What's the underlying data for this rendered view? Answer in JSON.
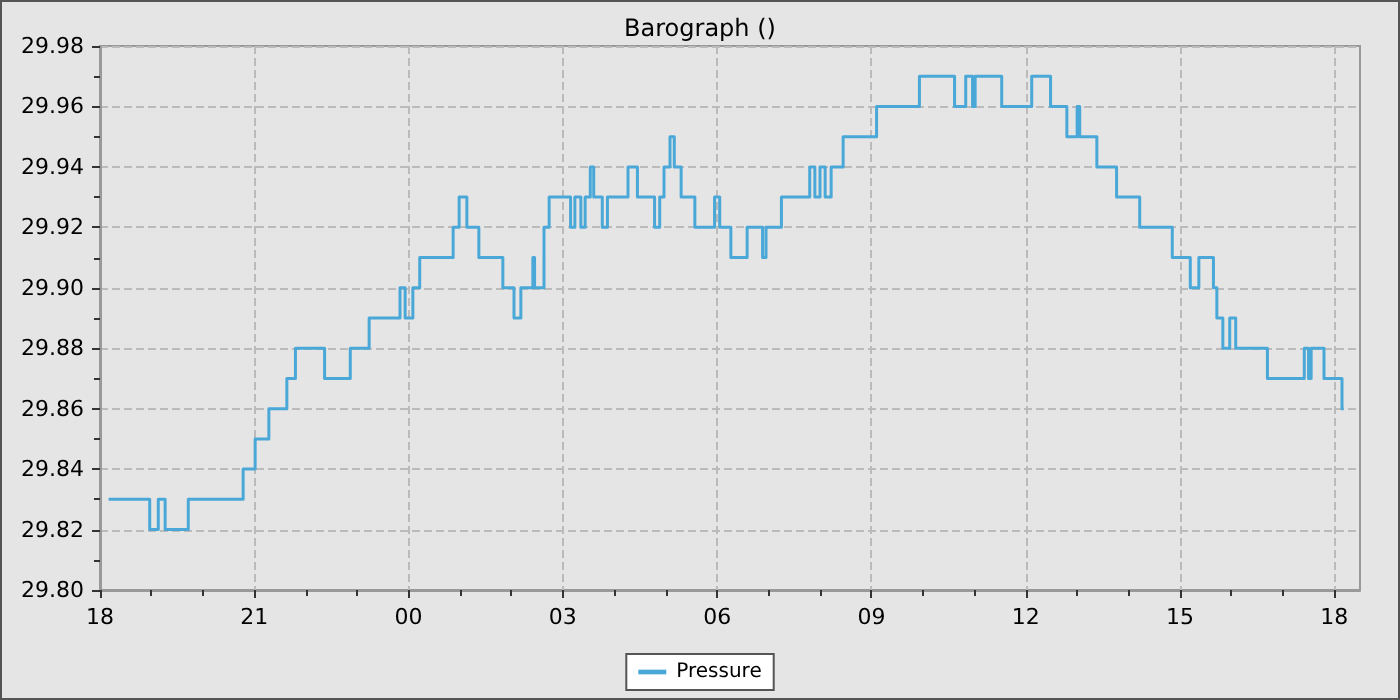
{
  "chart_data": {
    "type": "step",
    "title": "Barograph ()",
    "x": [
      "--01-01T18:10",
      "--01-01T18:58",
      "--01-01T19:08",
      "--01-01T19:16",
      "--01-01T19:43",
      "--01-01T20:47",
      "--01-01T21:01",
      "--01-01T21:17",
      "--01-01T21:38",
      "--01-01T21:48",
      "--01-01T22:22",
      "--01-01T22:52",
      "--01-01T23:14",
      "--01-01T23:50",
      "--01-01T23:56",
      "--01-02T00:05",
      "--01-02T00:13",
      "--01-02T00:52",
      "--01-02T00:59",
      "--01-02T01:08",
      "--01-02T01:22",
      "--01-02T01:50",
      "--01-02T02:03",
      "--01-02T02:11",
      "--01-02T02:25",
      "--01-02T02:27",
      "--01-02T02:38",
      "--01-02T02:44",
      "--01-02T03:09",
      "--01-02T03:14",
      "--01-02T03:21",
      "--01-02T03:26",
      "--01-02T03:32",
      "--01-02T03:36",
      "--01-02T03:46",
      "--01-02T03:52",
      "--01-02T04:16",
      "--01-02T04:27",
      "--01-02T04:47",
      "--01-02T04:53",
      "--01-02T04:58",
      "--01-02T05:05",
      "--01-02T05:10",
      "--01-02T05:18",
      "--01-02T05:34",
      "--01-02T05:57",
      "--01-02T06:03",
      "--01-02T06:16",
      "--01-02T06:35",
      "--01-02T06:53",
      "--01-02T06:57",
      "--01-02T07:15",
      "--01-02T07:48",
      "--01-02T07:54",
      "--01-02T08:00",
      "--01-02T08:06",
      "--01-02T08:13",
      "--01-02T08:27",
      "--01-02T09:06",
      "--01-02T09:56",
      "--01-02T10:37",
      "--01-02T10:50",
      "--01-02T10:58",
      "--01-02T11:01",
      "--01-02T11:32",
      "--01-02T12:07",
      "--01-02T12:29",
      "--01-02T12:48",
      "--01-02T13:00",
      "--01-02T13:03",
      "--01-02T13:23",
      "--01-02T13:46",
      "--01-02T14:13",
      "--01-02T14:51",
      "--01-02T15:12",
      "--01-02T15:22",
      "--01-02T15:39",
      "--01-02T15:43",
      "--01-02T15:50",
      "--01-02T15:58",
      "--01-02T16:05",
      "--01-02T16:42",
      "--01-02T17:25",
      "--01-02T17:30",
      "--01-02T17:33",
      "--01-02T17:48",
      "--01-02T18:09",
      "--01-02T18:11"
    ],
    "series": [
      {
        "name": "Pressure",
        "color": "#4aa8d8",
        "values": [
          29.83,
          29.82,
          29.83,
          29.82,
          29.83,
          29.84,
          29.85,
          29.86,
          29.87,
          29.88,
          29.87,
          29.88,
          29.89,
          29.9,
          29.89,
          29.9,
          29.91,
          29.92,
          29.93,
          29.92,
          29.91,
          29.9,
          29.89,
          29.9,
          29.91,
          29.9,
          29.92,
          29.93,
          29.92,
          29.93,
          29.92,
          29.93,
          29.94,
          29.93,
          29.92,
          29.93,
          29.94,
          29.93,
          29.92,
          29.93,
          29.94,
          29.95,
          29.94,
          29.93,
          29.92,
          29.93,
          29.92,
          29.91,
          29.92,
          29.91,
          29.92,
          29.93,
          29.94,
          29.93,
          29.94,
          29.93,
          29.94,
          29.95,
          29.96,
          29.97,
          29.96,
          29.97,
          29.96,
          29.97,
          29.96,
          29.97,
          29.96,
          29.95,
          29.96,
          29.95,
          29.94,
          29.93,
          29.92,
          29.91,
          29.9,
          29.91,
          29.9,
          29.89,
          29.88,
          29.89,
          29.88,
          29.87,
          29.88,
          29.87,
          29.88,
          29.87,
          29.86,
          29.86
        ]
      }
    ],
    "xlim": [
      "--01-01T18:00",
      "--01-02T18:30"
    ],
    "xticks": [
      {
        "value": "--01-01T18:00",
        "label": "18"
      },
      {
        "value": "--01-01T19:00",
        "label": null
      },
      {
        "value": "--01-01T20:00",
        "label": null
      },
      {
        "value": "--01-01T21:00",
        "label": "21"
      },
      {
        "value": "--01-01T22:00",
        "label": null
      },
      {
        "value": "--01-01T23:00",
        "label": null
      },
      {
        "value": "--01-02T00:00",
        "label": "00"
      },
      {
        "value": "--01-02T01:00",
        "label": null
      },
      {
        "value": "--01-02T02:00",
        "label": null
      },
      {
        "value": "--01-02T03:00",
        "label": "03"
      },
      {
        "value": "--01-02T04:00",
        "label": null
      },
      {
        "value": "--01-02T05:00",
        "label": null
      },
      {
        "value": "--01-02T06:00",
        "label": "06"
      },
      {
        "value": "--01-02T07:00",
        "label": null
      },
      {
        "value": "--01-02T08:00",
        "label": null
      },
      {
        "value": "--01-02T09:00",
        "label": "09"
      },
      {
        "value": "--01-02T10:00",
        "label": null
      },
      {
        "value": "--01-02T11:00",
        "label": null
      },
      {
        "value": "--01-02T12:00",
        "label": "12"
      },
      {
        "value": "--01-02T13:00",
        "label": null
      },
      {
        "value": "--01-02T14:00",
        "label": null
      },
      {
        "value": "--01-02T15:00",
        "label": "15"
      },
      {
        "value": "--01-02T16:00",
        "label": null
      },
      {
        "value": "--01-02T17:00",
        "label": null
      },
      {
        "value": "--01-02T18:00",
        "label": "18"
      }
    ],
    "ylim": [
      29.8,
      29.98
    ],
    "yticks": [
      {
        "value": 29.8,
        "label": "29.80"
      },
      {
        "value": 29.81,
        "label": null
      },
      29.82,
      {
        "value": 29.83,
        "label": null
      },
      29.84,
      {
        "value": 29.85,
        "label": null
      },
      29.86,
      {
        "value": 29.87,
        "label": null
      },
      29.88,
      {
        "value": 29.89,
        "label": null
      },
      {
        "value": 29.9,
        "label": "29.90"
      },
      {
        "value": 29.91,
        "label": null
      },
      29.92,
      {
        "value": 29.93,
        "label": null
      },
      29.94,
      {
        "value": 29.95,
        "label": null
      },
      29.96,
      {
        "value": 29.97,
        "label": null
      },
      29.98
    ],
    "grid": true,
    "legend": "bottom",
    "line_style": "solid",
    "marker": "none"
  }
}
